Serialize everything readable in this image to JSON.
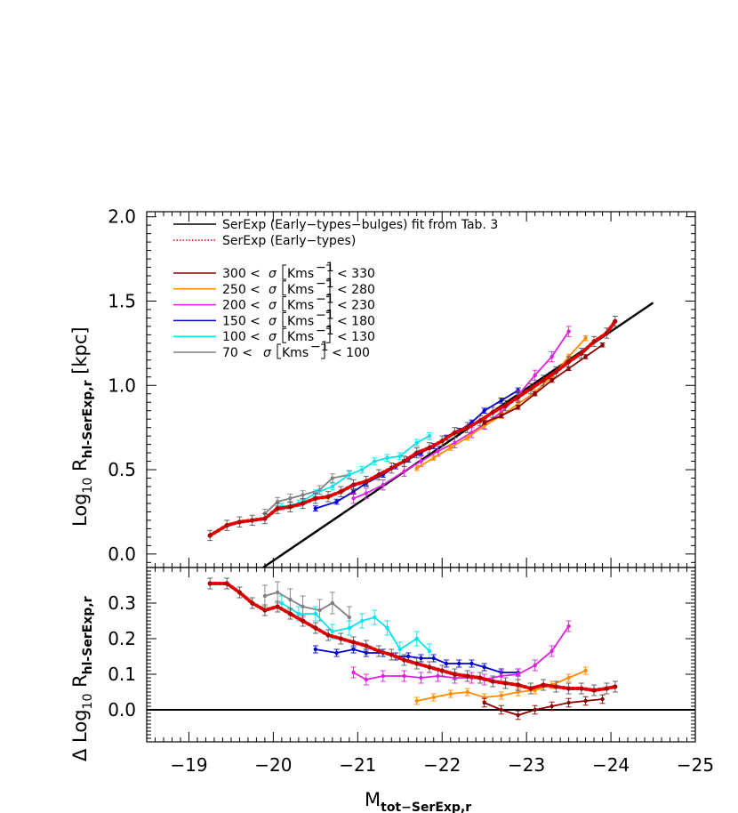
{
  "chart_data": [
    {
      "type": "line",
      "panel": "top",
      "xlabel": "M",
      "xlabel_sub": "tot-SerExp,r",
      "ylabel": "Log",
      "ylabel_sub10": "10",
      "ylabel_mid": " R",
      "ylabel_sub": "hl-SerExp,r",
      "ylabel_unit": "[kpc]",
      "xlim": [
        -18.5,
        -25
      ],
      "ylim": [
        -0.08,
        2.03
      ],
      "y_ticks": [
        0.0,
        0.5,
        1.0,
        1.5,
        2.0
      ],
      "y_tick_labels": [
        "0.0",
        "0.5",
        "1.0",
        "1.5",
        "2.0"
      ],
      "legend_placement": "top-left",
      "legend": [
        {
          "text": "SerExp (Early-types-bulges) fit from Tab. 3",
          "color": "#000000",
          "style": "solid"
        },
        {
          "text": "SerExp (Early-types)",
          "color": "#e00000",
          "style": "dotted"
        }
      ],
      "sigma_legend": [
        {
          "lo": "300 <",
          "hi": "< 330",
          "color": "#8b0000"
        },
        {
          "lo": "250 <",
          "hi": "< 280",
          "color": "#ff8c00"
        },
        {
          "lo": "200 <",
          "hi": "< 230",
          "color": "#e020e0"
        },
        {
          "lo": "150 <",
          "hi": "< 180",
          "color": "#0000cd"
        },
        {
          "lo": "100 <",
          "hi": "< 130",
          "color": "#00e5ee"
        },
        {
          "lo": "70 <",
          "hi": "< 100",
          "color": "#808080"
        }
      ],
      "sigma_symbol": "σ",
      "sigma_unit": "Kms",
      "sigma_exp": "-1",
      "fit_line": {
        "x": [
          -19.88,
          -24.5
        ],
        "y": [
          -0.08,
          1.49
        ]
      },
      "series": [
        {
          "color": "#e00000",
          "style": "dotted-red",
          "err": 0.03,
          "x": [
            -19.25,
            -19.45,
            -19.6,
            -19.75,
            -19.9,
            -20.05,
            -20.2,
            -20.35,
            -20.5,
            -20.65,
            -20.8,
            -20.95,
            -21.1,
            -21.25,
            -21.4,
            -21.55,
            -21.7,
            -21.85,
            -22.0,
            -22.15,
            -22.3,
            -22.45,
            -22.6,
            -22.75,
            -22.9,
            -23.05,
            -23.2,
            -23.35,
            -23.5,
            -23.65,
            -23.8,
            -23.95,
            -24.05
          ],
          "y": [
            0.11,
            0.17,
            0.19,
            0.2,
            0.21,
            0.27,
            0.28,
            0.3,
            0.33,
            0.34,
            0.37,
            0.41,
            0.43,
            0.47,
            0.51,
            0.55,
            0.6,
            0.63,
            0.67,
            0.72,
            0.75,
            0.79,
            0.84,
            0.88,
            0.93,
            0.98,
            1.03,
            1.08,
            1.14,
            1.19,
            1.26,
            1.31,
            1.38
          ]
        },
        {
          "color": "#808080",
          "err": 0.025,
          "x": [
            -19.9,
            -20.05,
            -20.2,
            -20.35,
            -20.55,
            -20.7,
            -20.9
          ],
          "y": [
            0.24,
            0.31,
            0.33,
            0.35,
            0.38,
            0.45,
            0.47
          ]
        },
        {
          "color": "#00e5ee",
          "err": 0.02,
          "x": [
            -20.1,
            -20.3,
            -20.5,
            -20.7,
            -20.9,
            -21.05,
            -21.2,
            -21.35,
            -21.5,
            -21.7,
            -21.85
          ],
          "y": [
            0.28,
            0.3,
            0.36,
            0.4,
            0.47,
            0.5,
            0.55,
            0.57,
            0.58,
            0.66,
            0.7
          ]
        },
        {
          "color": "#0000cd",
          "err": 0.015,
          "x": [
            -20.5,
            -20.75,
            -20.95,
            -21.1,
            -21.3,
            -21.45,
            -21.6,
            -21.75,
            -21.9,
            -22.05,
            -22.2,
            -22.35,
            -22.5,
            -22.7,
            -22.9
          ],
          "y": [
            0.27,
            0.31,
            0.37,
            0.42,
            0.47,
            0.52,
            0.56,
            0.6,
            0.64,
            0.69,
            0.73,
            0.78,
            0.85,
            0.91,
            0.97
          ]
        },
        {
          "color": "#e020e0",
          "err": 0.03,
          "x": [
            -20.95,
            -21.1,
            -21.3,
            -21.55,
            -21.75,
            -21.95,
            -22.15,
            -22.35,
            -22.5,
            -22.7,
            -22.9,
            -23.1,
            -23.3,
            -23.5
          ],
          "y": [
            0.33,
            0.36,
            0.41,
            0.49,
            0.55,
            0.61,
            0.66,
            0.72,
            0.77,
            0.84,
            0.94,
            1.06,
            1.17,
            1.32
          ]
        },
        {
          "color": "#ff8c00",
          "err": 0.015,
          "x": [
            -21.7,
            -21.9,
            -22.1,
            -22.3,
            -22.5,
            -22.7,
            -22.9,
            -23.1,
            -23.3,
            -23.5,
            -23.7
          ],
          "y": [
            0.51,
            0.57,
            0.63,
            0.69,
            0.76,
            0.82,
            0.89,
            0.96,
            1.05,
            1.17,
            1.28
          ]
        },
        {
          "color": "#8b0000",
          "err": 0.012,
          "x": [
            -22.5,
            -22.7,
            -22.9,
            -23.1,
            -23.3,
            -23.5,
            -23.7,
            -23.9
          ],
          "y": [
            0.78,
            0.82,
            0.87,
            0.95,
            1.03,
            1.1,
            1.17,
            1.24
          ]
        }
      ]
    },
    {
      "type": "line",
      "panel": "bottom",
      "ylabel": "Δ Log",
      "ylabel_sub10": "10",
      "ylabel_mid": " R",
      "ylabel_sub": "hl-SerExp,r",
      "xlim": [
        -18.5,
        -25
      ],
      "ylim": [
        -0.09,
        0.4
      ],
      "y_ticks": [
        0.0,
        0.1,
        0.2,
        0.3
      ],
      "y_tick_labels": [
        "0.0",
        "0.1",
        "0.2",
        "0.3"
      ],
      "x_ticks": [
        -19,
        -20,
        -21,
        -22,
        -23,
        -24,
        -25
      ],
      "x_tick_labels": [
        "-19",
        "-20",
        "-21",
        "-22",
        "-23",
        "-24",
        "-25"
      ],
      "zero_line": 0.0,
      "series": [
        {
          "color": "#e00000",
          "style": "dotted-red",
          "err": 0.015,
          "x": [
            -19.25,
            -19.45,
            -19.6,
            -19.75,
            -19.9,
            -20.05,
            -20.2,
            -20.35,
            -20.5,
            -20.65,
            -20.8,
            -20.95,
            -21.1,
            -21.25,
            -21.4,
            -21.55,
            -21.7,
            -21.85,
            -22.0,
            -22.15,
            -22.3,
            -22.45,
            -22.6,
            -22.75,
            -22.9,
            -23.05,
            -23.2,
            -23.35,
            -23.5,
            -23.65,
            -23.8,
            -23.95,
            -24.05
          ],
          "y": [
            0.355,
            0.355,
            0.33,
            0.3,
            0.28,
            0.29,
            0.27,
            0.25,
            0.23,
            0.21,
            0.2,
            0.19,
            0.18,
            0.165,
            0.155,
            0.14,
            0.13,
            0.12,
            0.11,
            0.1,
            0.095,
            0.09,
            0.08,
            0.075,
            0.07,
            0.06,
            0.07,
            0.065,
            0.06,
            0.06,
            0.055,
            0.06,
            0.065
          ]
        },
        {
          "color": "#808080",
          "err": 0.03,
          "x": [
            -19.9,
            -20.05,
            -20.2,
            -20.35,
            -20.55,
            -20.7,
            -20.9
          ],
          "y": [
            0.32,
            0.33,
            0.31,
            0.29,
            0.28,
            0.3,
            0.26
          ]
        },
        {
          "color": "#00e5ee",
          "err": 0.02,
          "x": [
            -20.1,
            -20.3,
            -20.5,
            -20.7,
            -20.9,
            -21.05,
            -21.2,
            -21.35,
            -21.5,
            -21.7,
            -21.85
          ],
          "y": [
            0.3,
            0.27,
            0.27,
            0.22,
            0.23,
            0.25,
            0.26,
            0.23,
            0.17,
            0.2,
            0.165
          ]
        },
        {
          "color": "#0000cd",
          "err": 0.01,
          "x": [
            -20.5,
            -20.75,
            -20.95,
            -21.1,
            -21.3,
            -21.45,
            -21.6,
            -21.75,
            -21.9,
            -22.05,
            -22.2,
            -22.35,
            -22.5,
            -22.7,
            -22.9
          ],
          "y": [
            0.17,
            0.16,
            0.17,
            0.16,
            0.16,
            0.15,
            0.15,
            0.145,
            0.145,
            0.13,
            0.13,
            0.13,
            0.12,
            0.105,
            0.105
          ]
        },
        {
          "color": "#e020e0",
          "err": 0.015,
          "x": [
            -20.95,
            -21.1,
            -21.3,
            -21.55,
            -21.75,
            -21.95,
            -22.15,
            -22.35,
            -22.5,
            -22.7,
            -22.9,
            -23.1,
            -23.3,
            -23.5
          ],
          "y": [
            0.105,
            0.085,
            0.095,
            0.095,
            0.09,
            0.095,
            0.09,
            0.09,
            0.085,
            0.095,
            0.1,
            0.125,
            0.165,
            0.235
          ]
        },
        {
          "color": "#ff8c00",
          "err": 0.01,
          "x": [
            -21.7,
            -21.9,
            -22.1,
            -22.3,
            -22.5,
            -22.7,
            -22.9,
            -23.1,
            -23.3,
            -23.5,
            -23.7
          ],
          "y": [
            0.025,
            0.035,
            0.045,
            0.05,
            0.035,
            0.04,
            0.05,
            0.055,
            0.07,
            0.09,
            0.11
          ]
        },
        {
          "color": "#8b0000",
          "err": 0.012,
          "x": [
            -22.5,
            -22.7,
            -22.9,
            -23.1,
            -23.3,
            -23.5,
            -23.7,
            -23.9
          ],
          "y": [
            0.02,
            0.0,
            -0.015,
            0.0,
            0.01,
            0.02,
            0.025,
            0.03
          ]
        }
      ]
    }
  ]
}
